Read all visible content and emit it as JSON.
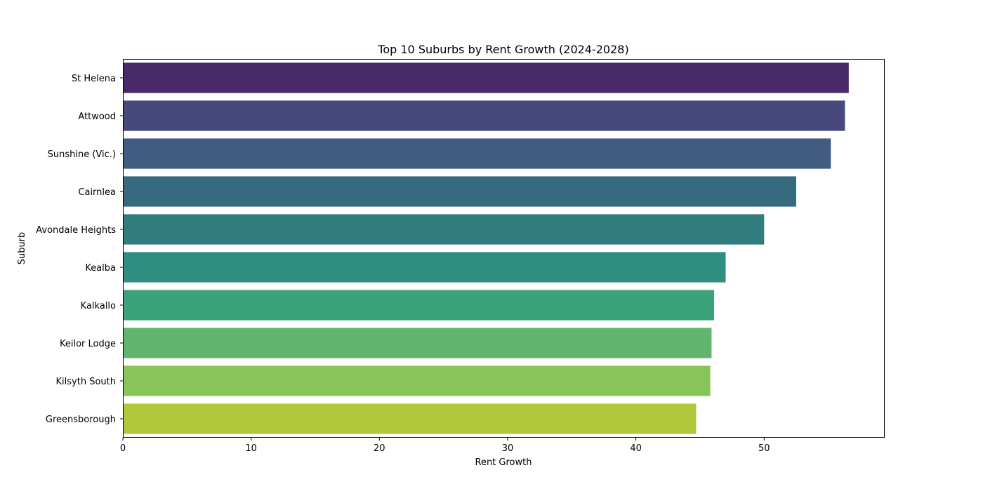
{
  "chart_data": {
    "type": "bar",
    "orientation": "horizontal",
    "title": "Top 10 Suburbs by Rent Growth (2024-2028)",
    "xlabel": "Rent Growth",
    "ylabel": "Suburb",
    "categories": [
      "St Helena",
      "Attwood",
      "Sunshine (Vic.)",
      "Cairnlea",
      "Avondale Heights",
      "Kealba",
      "Kalkallo",
      "Keilor Lodge",
      "Kilsyth South",
      "Greensborough"
    ],
    "values": [
      56.6,
      56.3,
      55.2,
      52.5,
      50.0,
      47.0,
      46.1,
      45.9,
      45.8,
      44.7
    ],
    "colors": [
      "#482a6b",
      "#47497d",
      "#425b81",
      "#376a7e",
      "#317c7f",
      "#2e8e80",
      "#3ca279",
      "#61b56f",
      "#89c45b",
      "#b1c83a"
    ],
    "xlim": [
      0,
      59.4
    ],
    "xticks": [
      0,
      10,
      20,
      30,
      40,
      50
    ],
    "grid": false,
    "legend": "none"
  }
}
